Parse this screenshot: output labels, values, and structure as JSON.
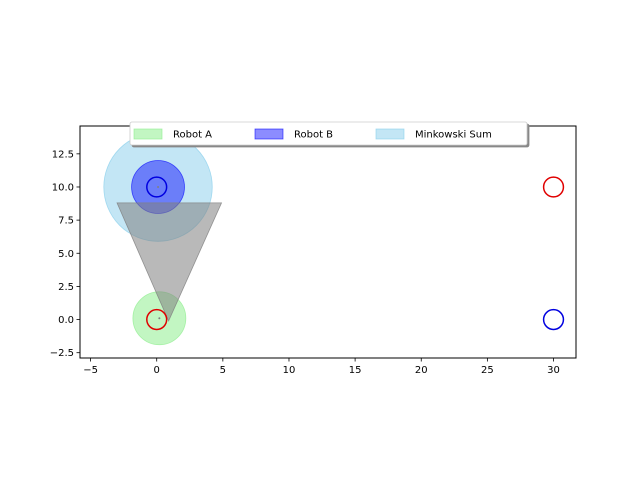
{
  "chart_data": {
    "type": "scatter",
    "title": "",
    "xlabel": "",
    "ylabel": "",
    "xlim": [
      -5.8,
      31.7
    ],
    "ylim": [
      -2.9,
      14.6
    ],
    "x_ticks": [
      -5,
      0,
      5,
      10,
      15,
      20,
      25,
      30
    ],
    "y_ticks": [
      -2.5,
      0.0,
      2.5,
      5.0,
      7.5,
      10.0,
      12.5
    ],
    "x_tick_labels": [
      "−5",
      "0",
      "5",
      "10",
      "15",
      "20",
      "25",
      "30"
    ],
    "y_tick_labels": [
      "−2.5",
      "0.0",
      "2.5",
      "5.0",
      "7.5",
      "10.0",
      "12.5"
    ],
    "grid": false,
    "legend": {
      "placement": "top-center",
      "entries": [
        {
          "label": "Robot A",
          "color": "#90ee90"
        },
        {
          "label": "Robot B",
          "color": "#0000ff"
        },
        {
          "label": "Minkowski Sum",
          "color": "#87ceeb"
        }
      ]
    },
    "filled_circles": [
      {
        "name": "Robot A",
        "cx": 0.2,
        "cy": 0.1,
        "r": 2.0,
        "color": "#90ee90",
        "opacity": 0.55
      },
      {
        "name": "Minkowski Sum",
        "cx": 0.1,
        "cy": 10.0,
        "r": 4.1,
        "color": "#87ceeb",
        "opacity": 0.5
      },
      {
        "name": "Robot B",
        "cx": 0.1,
        "cy": 10.0,
        "r": 2.0,
        "color": "#0000ff",
        "opacity": 0.45
      }
    ],
    "velocity_cone": {
      "color": "#808080",
      "opacity": 0.55,
      "points": [
        [
          -3.0,
          8.8
        ],
        [
          4.9,
          8.8
        ],
        [
          0.9,
          -0.1
        ]
      ]
    },
    "outline_circles": [
      {
        "cx": 0.0,
        "cy": 0.0,
        "r": 0.75,
        "color": "#e00000"
      },
      {
        "cx": 0.0,
        "cy": 10.0,
        "r": 0.75,
        "color": "#0000e0"
      },
      {
        "cx": 30.0,
        "cy": 10.0,
        "r": 0.75,
        "color": "#e00000"
      },
      {
        "cx": 30.0,
        "cy": 0.0,
        "r": 0.75,
        "color": "#0000e0"
      }
    ],
    "center_dots": [
      {
        "cx": 0.2,
        "cy": 0.1,
        "color": "#808080"
      },
      {
        "cx": 0.1,
        "cy": 10.0,
        "color": "#808080"
      }
    ]
  }
}
